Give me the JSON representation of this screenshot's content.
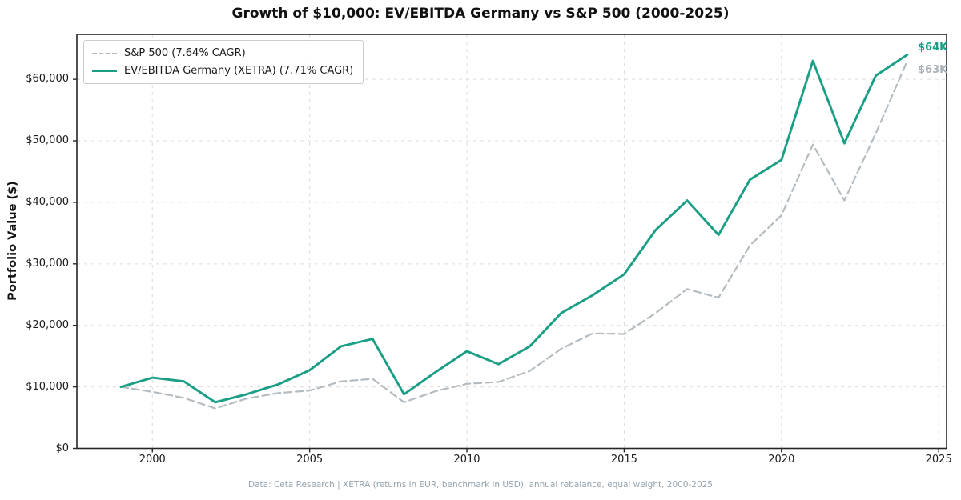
{
  "title": "Growth of $10,000: EV/EBITDA Germany vs S&P 500 (2000-2025)",
  "y_axis_label": "Portfolio Value ($)",
  "footer": "Data: Ceta Research | XETRA (returns in EUR, benchmark in USD), annual rebalance, equal weight, 2000-2025",
  "end_labels": {
    "germany": "$64K",
    "sp500": "$63K"
  },
  "legend": [
    {
      "label": "S&P 500 (7.64% CAGR)",
      "style": "dashed",
      "color": "#b4bcc1"
    },
    {
      "label": "EV/EBITDA Germany (XETRA) (7.71% CAGR)",
      "style": "solid",
      "color": "#1a9e85"
    }
  ],
  "colors": {
    "germany_line": "#1a9e85",
    "sp500_line": "#b4bcc1",
    "grid": "#dcdcdc",
    "spine": "#262626"
  },
  "chart_data": {
    "type": "line",
    "title": "Growth of $10,000: EV/EBITDA Germany vs S&P 500 (2000-2025)",
    "xlabel": "",
    "ylabel": "Portfolio Value ($)",
    "x": [
      1999,
      2000,
      2001,
      2002,
      2003,
      2004,
      2005,
      2006,
      2007,
      2008,
      2009,
      2010,
      2011,
      2012,
      2013,
      2014,
      2015,
      2016,
      2017,
      2018,
      2019,
      2020,
      2021,
      2022,
      2023,
      2024
    ],
    "series": [
      {
        "name": "S&P 500 (7.64% CAGR)",
        "color": "#b4bcc1",
        "dash": true,
        "final_label": "$63K",
        "cagr_pct": 7.64,
        "values": [
          10000,
          9200,
          8200,
          6500,
          8100,
          9000,
          9400,
          10900,
          11300,
          7500,
          9300,
          10500,
          10800,
          12600,
          16200,
          18700,
          18600,
          22000,
          25900,
          24500,
          33000,
          37900,
          49400,
          40300,
          51200,
          63000
        ]
      },
      {
        "name": "EV/EBITDA Germany (XETRA) (7.71% CAGR)",
        "color": "#1a9e85",
        "dash": false,
        "final_label": "$64K",
        "cagr_pct": 7.71,
        "values": [
          10000,
          11500,
          10900,
          7500,
          8800,
          10400,
          12700,
          16600,
          17800,
          8800,
          12400,
          15800,
          13700,
          16600,
          22000,
          24900,
          28300,
          35500,
          40300,
          34700,
          43700,
          46900,
          63000,
          49600,
          60600,
          64000
        ]
      }
    ],
    "x_ticks": [
      2000,
      2005,
      2010,
      2015,
      2020,
      2025
    ],
    "y_ticks": [
      0,
      10000,
      20000,
      30000,
      40000,
      50000,
      60000
    ],
    "y_tick_labels": [
      "$0",
      "$10,000",
      "$20,000",
      "$30,000",
      "$40,000",
      "$50,000",
      "$60,000"
    ],
    "xlim": [
      1997.6,
      2025.25
    ],
    "ylim": [
      0,
      67300
    ],
    "grid": true,
    "legend_position": "upper-left"
  }
}
